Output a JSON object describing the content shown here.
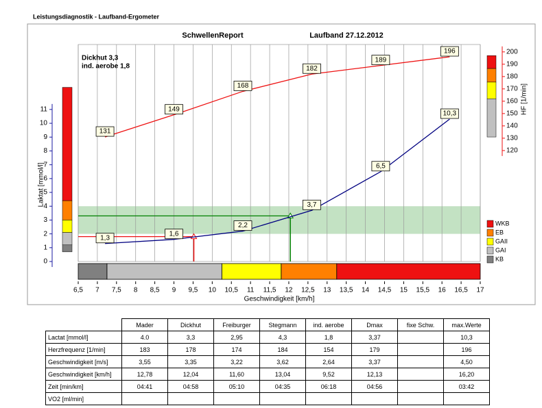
{
  "header": {
    "title": "Leistungsdiagnostik   - Laufband-Ergometer"
  },
  "chart_data": {
    "type": "line",
    "title": "SchwellenReport",
    "subtitle": "Laufband 27.12.2012",
    "xlabel": "Geschwindigkeit [km/h]",
    "ylabel": "Laktat [mmol/l]",
    "y2label": "HF [1/min]",
    "x": [
      7.2,
      9,
      10.8,
      12.6,
      14.4,
      16.2
    ],
    "series": [
      {
        "color": "#000080",
        "values": [
          1.3,
          1.6,
          2.2,
          3.7,
          6.5,
          10.3
        ],
        "value_labels": [
          "1,3",
          "1,6",
          "2,2",
          "3,7",
          "6,5",
          "10,3"
        ]
      },
      {
        "color": "#ee1111",
        "axis": "y2",
        "values": [
          131,
          149,
          168,
          182,
          189,
          196
        ]
      }
    ],
    "xlim": [
      6.5,
      17
    ],
    "xticks": [
      {
        "value": 6.5,
        "label": "6,5"
      },
      7,
      {
        "value": 7.5,
        "label": "7,5"
      },
      8,
      {
        "value": 8.5,
        "label": "8,5"
      },
      9,
      {
        "value": 9.5,
        "label": "9,5"
      },
      10,
      {
        "value": 10.5,
        "label": "10,5"
      },
      11,
      {
        "value": 11.5,
        "label": "11,5"
      },
      12,
      {
        "value": 12.5,
        "label": "12,5"
      },
      13,
      {
        "value": 13.5,
        "label": "13,5"
      },
      14,
      {
        "value": 14.5,
        "label": "14,5"
      },
      15,
      {
        "value": 15.5,
        "label": "15,5"
      },
      16,
      {
        "value": 16.5,
        "label": "16,5"
      },
      17
    ],
    "ylim": [
      0,
      15.7
    ],
    "yticks": [
      0,
      1,
      2,
      3,
      4,
      5,
      6,
      7,
      8,
      9,
      10,
      11
    ],
    "ycolor": "#1a1aa0",
    "y2lim": [
      30,
      206
    ],
    "y2ticks": [
      120,
      130,
      140,
      150,
      160,
      170,
      180,
      190,
      200
    ],
    "y2color": "#ee1111",
    "grid": "x",
    "band": {
      "from": 2,
      "to": 4,
      "color": "#b9ddb9"
    },
    "thresholds": [
      {
        "label": "Dickhut 3,3",
        "value": 3.3,
        "speed": 12.04,
        "color": "#008000"
      },
      {
        "label": "ind. aerobe 1,8",
        "value": 1.8,
        "speed": 9.52,
        "color": "#ee1111"
      }
    ],
    "zones": [
      {
        "name": "WKB",
        "color": "#ee1111",
        "lactate": [
          4.4,
          12.6
        ],
        "hr": [
          186.5,
          197
        ],
        "speed": [
          13.25,
          17
        ]
      },
      {
        "name": "EB",
        "color": "#ff8000",
        "lactate": [
          3.0,
          4.4
        ],
        "hr": [
          175.5,
          186.5
        ],
        "speed": [
          11.8,
          13.25
        ]
      },
      {
        "name": "GAII",
        "color": "#ffff00",
        "lactate": [
          2.1,
          3.0
        ],
        "hr": [
          162,
          175.5
        ],
        "speed": [
          10.25,
          11.8
        ]
      },
      {
        "name": "GAI",
        "color": "#c0c0c0",
        "lactate": [
          1.2,
          2.1
        ],
        "hr": [
          131,
          162
        ],
        "speed": [
          7.25,
          10.25
        ]
      },
      {
        "name": "KB",
        "color": "#808080",
        "lactate": [
          0.7,
          1.2
        ],
        "speed": [
          6.5,
          7.25
        ]
      }
    ]
  },
  "table": {
    "header": [
      "Mader",
      "Dickhut",
      "Freiburger",
      "Stegmann",
      "ind. aerobe",
      "Dmax",
      "fixe Schw.",
      "max.Werte"
    ],
    "rows": [
      [
        "Lactat [mmol/l]",
        "4.0",
        "3,3",
        "2,95",
        "4,3",
        "1,8",
        "3,37",
        null,
        "10,3"
      ],
      [
        "Herzfrequenz [1/min]",
        "183",
        "178",
        "174",
        "184",
        "154",
        "179",
        null,
        "196"
      ],
      [
        "Geschwindigkeit [m/s]",
        "3,55",
        "3,35",
        "3,22",
        "3,62",
        "2,64",
        "3,37",
        null,
        "4,50"
      ],
      [
        "Geschwindigkeit [km/h]",
        "12,78",
        "12,04",
        "11,60",
        "13,04",
        "9,52",
        "12,13",
        null,
        "16,20"
      ],
      [
        "Zeit [min/km]",
        "04:41",
        "04:58",
        "05:10",
        "04:35",
        "06:18",
        "04:56",
        null,
        "03:42"
      ],
      [
        "VO2 [ml/min]",
        null,
        null,
        null,
        null,
        null,
        null,
        null,
        null
      ]
    ]
  }
}
